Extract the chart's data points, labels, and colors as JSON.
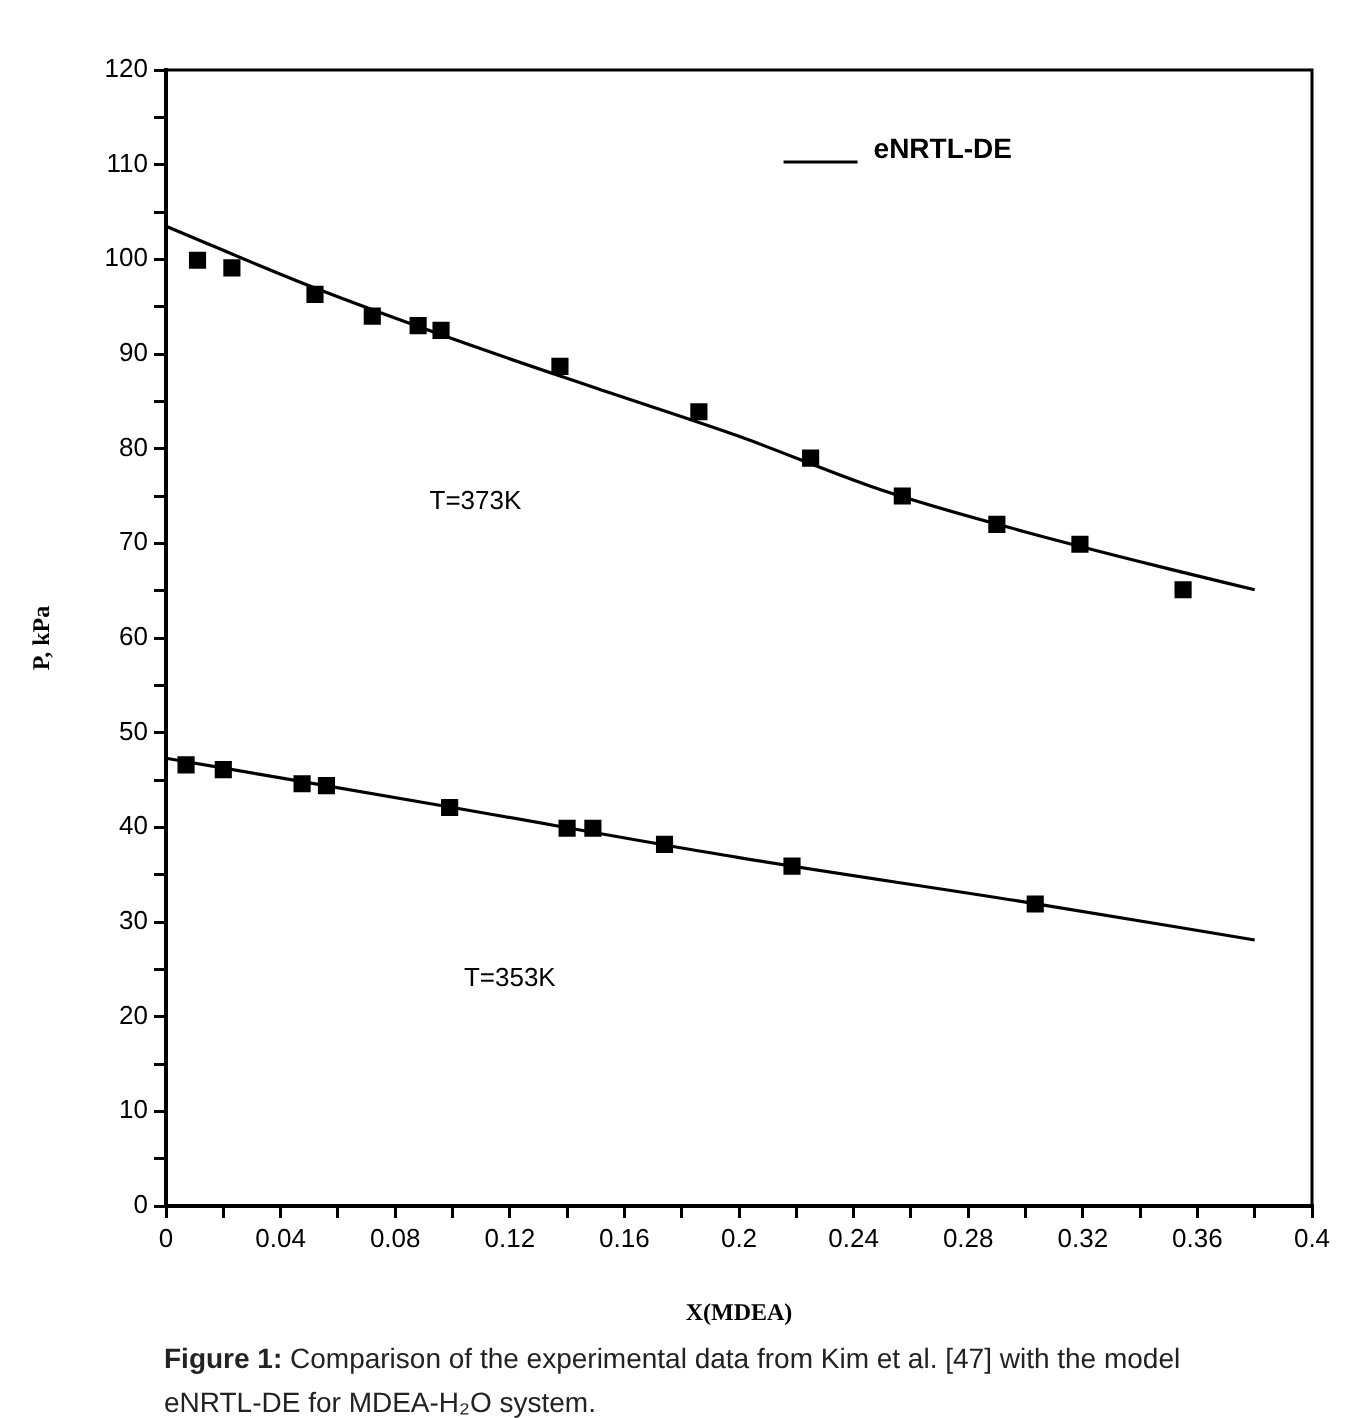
{
  "chart_data": {
    "type": "scatter",
    "xlabel": "X(MDEA)",
    "ylabel": "P, kPa",
    "xlim": [
      0,
      0.4
    ],
    "ylim": [
      0,
      120
    ],
    "xticks": [
      0,
      {
        "value": 0.02,
        "label": null
      },
      0.04,
      {
        "value": 0.06,
        "label": null
      },
      0.08,
      {
        "value": 0.1,
        "label": null
      },
      0.12,
      {
        "value": 0.14,
        "label": null
      },
      0.16,
      {
        "value": 0.18,
        "label": null
      },
      0.2,
      {
        "value": 0.22,
        "label": null
      },
      0.24,
      {
        "value": 0.26,
        "label": null
      },
      0.28,
      {
        "value": 0.3,
        "label": null
      },
      0.32,
      {
        "value": 0.34,
        "label": null
      },
      0.36,
      {
        "value": 0.38,
        "label": null
      },
      0.4
    ],
    "yticks": [
      0,
      {
        "value": 5,
        "label": null
      },
      10,
      {
        "value": 15,
        "label": null
      },
      20,
      {
        "value": 25,
        "label": null
      },
      30,
      {
        "value": 35,
        "label": null
      },
      40,
      {
        "value": 45,
        "label": null
      },
      50,
      {
        "value": 55,
        "label": null
      },
      60,
      {
        "value": 65,
        "label": null
      },
      70,
      {
        "value": 75,
        "label": null
      },
      80,
      {
        "value": 85,
        "label": null
      },
      90,
      {
        "value": 95,
        "label": null
      },
      100,
      {
        "value": 105,
        "label": null
      },
      110,
      {
        "value": 115,
        "label": null
      },
      120
    ],
    "grid": false,
    "legend": "top right",
    "series": [
      {
        "marker": "square",
        "color": "#000000",
        "x": [
          0.011,
          0.023,
          0.052,
          0.072,
          0.088,
          0.096,
          0.1375,
          0.186,
          0.225,
          0.257,
          0.29,
          0.319,
          0.355
        ],
        "values": [
          99.9,
          99.1,
          96.3,
          94.0,
          93.0,
          92.5,
          88.7,
          83.9,
          79.0,
          75.0,
          72.0,
          69.9,
          65.1
        ]
      },
      {
        "marker": "square",
        "color": "#000000",
        "x": [
          0.007,
          0.02,
          0.0475,
          0.056,
          0.099,
          0.14,
          0.149,
          0.174,
          0.2185,
          0.3034
        ],
        "values": [
          46.6,
          46.1,
          44.6,
          44.4,
          42.1,
          39.9,
          39.9,
          38.2,
          35.9,
          31.9
        ]
      },
      {
        "type": "line",
        "marker": "none",
        "name": "eNRTL-DE",
        "color": "#000000",
        "x": [
          0,
          0.05,
          0.1,
          0.15,
          0.2,
          0.25,
          0.3,
          0.35,
          0.38
        ],
        "values": [
          103.5,
          97.2,
          91.6,
          86.4,
          81.3,
          75.6,
          71.2,
          67.3,
          65.1
        ]
      },
      {
        "type": "line",
        "marker": "none",
        "color": "#000000",
        "x": [
          0,
          0.1,
          0.2,
          0.3,
          0.38
        ],
        "values": [
          47.3,
          42.1,
          36.8,
          32.1,
          28.1
        ]
      }
    ],
    "annotations": [
      "T=373K",
      "T=353K",
      "Figure 1: Comparison of the experimental data from Kim et al. [47] with  the model  eNRTL-DE for MDEA-H₂O system."
    ]
  }
}
